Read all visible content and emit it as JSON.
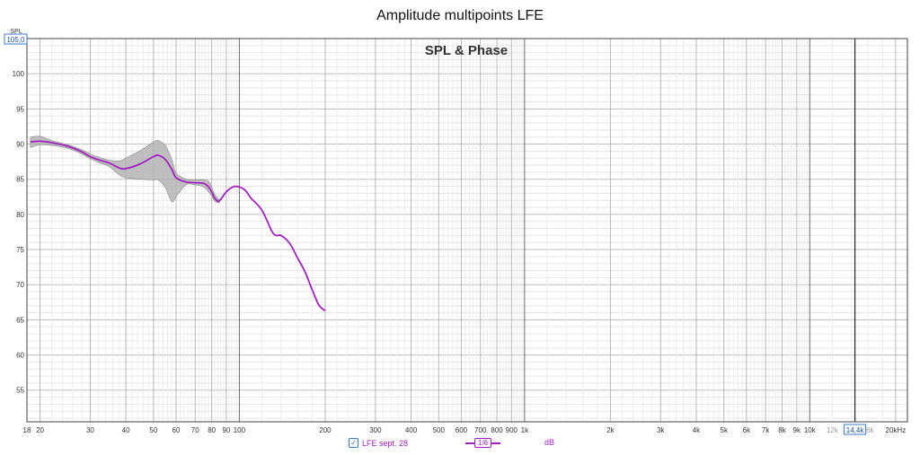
{
  "chart_data": {
    "type": "line",
    "title": "Amplitude multipoints LFE",
    "inner_title": "SPL & Phase",
    "ylabel": "SPL",
    "xlabel": "",
    "x_scale": "log",
    "xlim": [
      18,
      22000
    ],
    "ylim": [
      50.5,
      105
    ],
    "y_top_label": "105,0",
    "y_ticks": [
      "55",
      "60",
      "65",
      "70",
      "75",
      "80",
      "85",
      "90",
      "95",
      "100"
    ],
    "x_ticks": [
      {
        "v": 18,
        "label": "18"
      },
      {
        "v": 20,
        "label": "20"
      },
      {
        "v": 30,
        "label": "30"
      },
      {
        "v": 40,
        "label": "40"
      },
      {
        "v": 50,
        "label": "50"
      },
      {
        "v": 60,
        "label": "60"
      },
      {
        "v": 70,
        "label": "70"
      },
      {
        "v": 80,
        "label": "80"
      },
      {
        "v": 90,
        "label": "90"
      },
      {
        "v": 100,
        "label": "100"
      },
      {
        "v": 200,
        "label": "200"
      },
      {
        "v": 300,
        "label": "300"
      },
      {
        "v": 400,
        "label": "400"
      },
      {
        "v": 500,
        "label": "500"
      },
      {
        "v": 600,
        "label": "600"
      },
      {
        "v": 700,
        "label": "700"
      },
      {
        "v": 800,
        "label": "800"
      },
      {
        "v": 900,
        "label": "900"
      },
      {
        "v": 1000,
        "label": "1k"
      },
      {
        "v": 2000,
        "label": "2k"
      },
      {
        "v": 3000,
        "label": "3k"
      },
      {
        "v": 4000,
        "label": "4k"
      },
      {
        "v": 5000,
        "label": "5k"
      },
      {
        "v": 6000,
        "label": "6k"
      },
      {
        "v": 7000,
        "label": "7k"
      },
      {
        "v": 8000,
        "label": "8k"
      },
      {
        "v": 9000,
        "label": "9k"
      },
      {
        "v": 10000,
        "label": "10k"
      },
      {
        "v": 12000,
        "label": "12k"
      },
      {
        "v": 16000,
        "label": "16k"
      },
      {
        "v": 20000,
        "label": "20kHz"
      }
    ],
    "cursor": {
      "x": 14400,
      "label": "14,4k"
    },
    "series": [
      {
        "name": "LFE sept. 28",
        "color": "#a020c0",
        "x": [
          18.5,
          20,
          22,
          25,
          28,
          30,
          33,
          35,
          38,
          40,
          45,
          50,
          52,
          55,
          58,
          60,
          65,
          70,
          75,
          78,
          80,
          82,
          85,
          90,
          95,
          100,
          105,
          110,
          120,
          130,
          135,
          140,
          150,
          160,
          170,
          180,
          190,
          200
        ],
        "values": [
          90.3,
          90.4,
          90.2,
          89.7,
          88.9,
          88.2,
          87.6,
          87.3,
          86.6,
          86.5,
          87.2,
          88.2,
          88.4,
          87.8,
          86.4,
          85.2,
          84.6,
          84.5,
          84.4,
          83.9,
          83.2,
          82.3,
          81.9,
          83.2,
          83.9,
          83.9,
          83.4,
          82.3,
          80.6,
          77.6,
          77.0,
          77.0,
          75.9,
          73.8,
          71.8,
          69.3,
          67.1,
          66.3
        ]
      }
    ],
    "band": {
      "color": "#808080",
      "x": [
        18.5,
        20,
        22,
        25,
        28,
        30,
        33,
        35,
        38,
        40,
        45,
        50,
        52,
        55,
        58,
        60,
        65,
        70,
        75,
        78,
        80,
        82,
        85
      ],
      "upper": [
        91.0,
        91.1,
        90.5,
        89.9,
        89.2,
        88.6,
        88.0,
        87.7,
        87.6,
        88.0,
        89.1,
        90.3,
        90.5,
        89.8,
        87.8,
        85.9,
        85.0,
        84.9,
        84.9,
        84.7,
        83.9,
        82.8,
        82.1
      ],
      "lower": [
        89.5,
        89.9,
        89.8,
        89.4,
        88.6,
        87.9,
        87.2,
        86.8,
        85.6,
        85.2,
        85.0,
        84.9,
        84.9,
        83.8,
        81.8,
        82.5,
        84.2,
        84.2,
        83.9,
        83.2,
        82.6,
        81.9,
        81.6
      ]
    }
  },
  "legend": {
    "series_label": "LFE sept. 28",
    "checked": "✓",
    "smoothing_label": "1/6",
    "unit_label": "dB"
  }
}
